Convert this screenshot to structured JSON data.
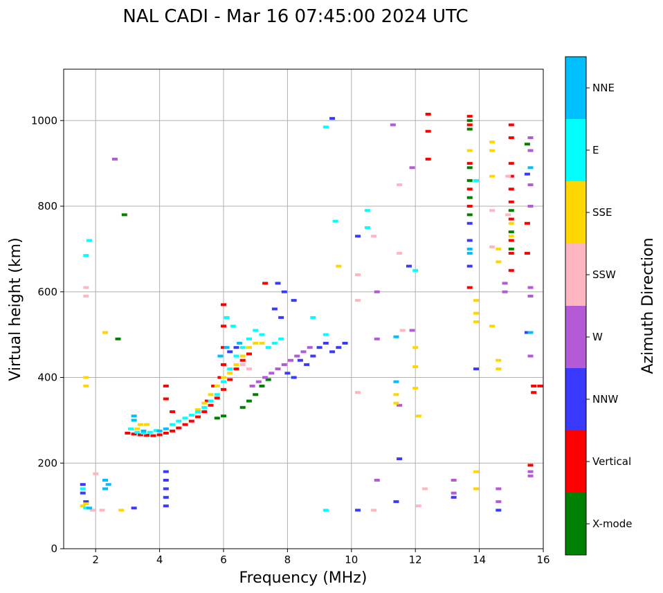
{
  "chart_data": {
    "type": "scatter",
    "title": "NAL CADI - Mar 16 07:45:00 2024 UTC",
    "xlabel": "Frequency (MHz)",
    "ylabel": "Virtual height (km)",
    "xlim": [
      1,
      16
    ],
    "ylim": [
      0,
      1120
    ],
    "xticks": [
      2,
      4,
      6,
      8,
      10,
      12,
      14,
      16
    ],
    "yticks": [
      0,
      200,
      400,
      600,
      800,
      1000
    ],
    "grid": true,
    "colorbar": {
      "label": "Azimuth Direction",
      "categories": [
        {
          "name": "X-mode",
          "color": "#008000"
        },
        {
          "name": "Vertical",
          "color": "#ff0000"
        },
        {
          "name": "NNW",
          "color": "#3a3aff"
        },
        {
          "name": "W",
          "color": "#b45ad6"
        },
        {
          "name": "SSW",
          "color": "#ffb6c1"
        },
        {
          "name": "SSE",
          "color": "#ffd700"
        },
        {
          "name": "E",
          "color": "#00ffff"
        },
        {
          "name": "NNE",
          "color": "#00bfff"
        }
      ]
    },
    "series": [
      {
        "name": "Vertical",
        "points": [
          [
            3.0,
            270
          ],
          [
            3.2,
            268
          ],
          [
            3.4,
            266
          ],
          [
            3.6,
            265
          ],
          [
            3.8,
            264
          ],
          [
            4.0,
            266
          ],
          [
            4.2,
            270
          ],
          [
            4.4,
            275
          ],
          [
            4.6,
            282
          ],
          [
            4.8,
            290
          ],
          [
            5.0,
            298
          ],
          [
            5.2,
            308
          ],
          [
            5.4,
            320
          ],
          [
            5.6,
            335
          ],
          [
            5.8,
            352
          ],
          [
            6.0,
            372
          ],
          [
            6.2,
            395
          ],
          [
            6.4,
            420
          ],
          [
            6.6,
            440
          ],
          [
            6.8,
            455
          ],
          [
            5.9,
            400
          ],
          [
            6.0,
            430
          ],
          [
            6.0,
            470
          ],
          [
            6.0,
            520
          ],
          [
            6.0,
            570
          ],
          [
            4.2,
            350
          ],
          [
            4.2,
            380
          ],
          [
            4.4,
            320
          ],
          [
            5.5,
            345
          ],
          [
            5.7,
            380
          ],
          [
            7.3,
            620
          ],
          [
            13.7,
            1010
          ],
          [
            13.7,
            990
          ],
          [
            13.7,
            900
          ],
          [
            13.7,
            840
          ],
          [
            13.7,
            800
          ],
          [
            13.7,
            610
          ],
          [
            15.0,
            990
          ],
          [
            15.0,
            960
          ],
          [
            15.0,
            900
          ],
          [
            15.0,
            870
          ],
          [
            15.0,
            840
          ],
          [
            15.0,
            810
          ],
          [
            15.0,
            770
          ],
          [
            15.0,
            720
          ],
          [
            15.0,
            690
          ],
          [
            15.0,
            650
          ],
          [
            15.7,
            380
          ],
          [
            15.7,
            365
          ],
          [
            15.9,
            380
          ],
          [
            12.4,
            1015
          ],
          [
            12.4,
            975
          ],
          [
            12.4,
            910
          ],
          [
            15.5,
            760
          ],
          [
            15.5,
            690
          ],
          [
            15.6,
            195
          ]
        ]
      },
      {
        "name": "X-mode",
        "points": [
          [
            13.7,
            1000
          ],
          [
            13.7,
            980
          ],
          [
            13.7,
            890
          ],
          [
            13.7,
            860
          ],
          [
            13.7,
            820
          ],
          [
            13.7,
            780
          ],
          [
            15.0,
            790
          ],
          [
            15.0,
            740
          ],
          [
            15.0,
            700
          ],
          [
            15.5,
            945
          ],
          [
            6.6,
            330
          ],
          [
            6.8,
            345
          ],
          [
            7.0,
            360
          ],
          [
            7.2,
            380
          ],
          [
            7.4,
            395
          ],
          [
            6.0,
            310
          ],
          [
            5.8,
            305
          ],
          [
            2.9,
            780
          ],
          [
            2.7,
            490
          ]
        ]
      },
      {
        "name": "NNW",
        "points": [
          [
            4.2,
            180
          ],
          [
            4.2,
            160
          ],
          [
            4.2,
            140
          ],
          [
            4.2,
            120
          ],
          [
            4.2,
            100
          ],
          [
            1.6,
            150
          ],
          [
            1.6,
            130
          ],
          [
            1.7,
            110
          ],
          [
            7.6,
            560
          ],
          [
            7.8,
            540
          ],
          [
            7.7,
            620
          ],
          [
            7.9,
            600
          ],
          [
            8.2,
            580
          ],
          [
            8.4,
            440
          ],
          [
            8.6,
            430
          ],
          [
            8.8,
            450
          ],
          [
            9.0,
            470
          ],
          [
            9.2,
            480
          ],
          [
            9.4,
            460
          ],
          [
            9.6,
            470
          ],
          [
            9.8,
            480
          ],
          [
            8.0,
            410
          ],
          [
            8.2,
            400
          ],
          [
            13.7,
            760
          ],
          [
            13.7,
            720
          ],
          [
            13.7,
            660
          ],
          [
            13.9,
            420
          ],
          [
            13.2,
            120
          ],
          [
            10.2,
            90
          ],
          [
            11.4,
            110
          ],
          [
            11.5,
            210
          ],
          [
            11.8,
            660
          ],
          [
            9.4,
            1005
          ],
          [
            10.2,
            730
          ],
          [
            15.5,
            875
          ],
          [
            15.5,
            505
          ],
          [
            14.6,
            90
          ],
          [
            6.4,
            470
          ],
          [
            6.2,
            460
          ],
          [
            3.2,
            95
          ]
        ]
      },
      {
        "name": "W",
        "points": [
          [
            7.5,
            410
          ],
          [
            7.7,
            420
          ],
          [
            7.9,
            430
          ],
          [
            8.1,
            440
          ],
          [
            8.3,
            450
          ],
          [
            8.5,
            460
          ],
          [
            8.7,
            470
          ],
          [
            7.3,
            400
          ],
          [
            7.1,
            390
          ],
          [
            6.9,
            380
          ],
          [
            13.2,
            160
          ],
          [
            13.2,
            130
          ],
          [
            14.6,
            140
          ],
          [
            14.6,
            110
          ],
          [
            15.6,
            960
          ],
          [
            15.6,
            930
          ],
          [
            15.6,
            850
          ],
          [
            15.6,
            800
          ],
          [
            15.6,
            610
          ],
          [
            15.6,
            590
          ],
          [
            15.6,
            450
          ],
          [
            15.6,
            170
          ],
          [
            15.6,
            180
          ],
          [
            11.3,
            990
          ],
          [
            11.9,
            890
          ],
          [
            14.8,
            620
          ],
          [
            14.8,
            600
          ],
          [
            11.9,
            510
          ],
          [
            10.8,
            600
          ],
          [
            10.8,
            490
          ],
          [
            10.8,
            160
          ],
          [
            11.5,
            335
          ],
          [
            2.6,
            910
          ]
        ]
      },
      {
        "name": "SSW",
        "points": [
          [
            1.7,
            610
          ],
          [
            1.7,
            590
          ],
          [
            12.3,
            140
          ],
          [
            12.1,
            100
          ],
          [
            14.4,
            790
          ],
          [
            14.4,
            705
          ],
          [
            10.7,
            730
          ],
          [
            10.2,
            640
          ],
          [
            10.2,
            580
          ],
          [
            10.2,
            365
          ],
          [
            11.5,
            690
          ],
          [
            11.5,
            850
          ],
          [
            11.6,
            510
          ],
          [
            6.6,
            430
          ],
          [
            6.8,
            420
          ],
          [
            14.9,
            870
          ],
          [
            14.9,
            780
          ],
          [
            2.0,
            175
          ],
          [
            1.9,
            90
          ],
          [
            2.2,
            90
          ],
          [
            10.7,
            90
          ]
        ]
      },
      {
        "name": "SSE",
        "points": [
          [
            14.4,
            950
          ],
          [
            14.4,
            930
          ],
          [
            14.4,
            870
          ],
          [
            14.6,
            700
          ],
          [
            14.6,
            670
          ],
          [
            14.6,
            440
          ],
          [
            14.6,
            420
          ],
          [
            14.4,
            520
          ],
          [
            13.9,
            580
          ],
          [
            13.9,
            550
          ],
          [
            13.9,
            530
          ],
          [
            13.9,
            180
          ],
          [
            13.9,
            140
          ],
          [
            15.0,
            760
          ],
          [
            15.0,
            730
          ],
          [
            13.7,
            930
          ],
          [
            12.0,
            470
          ],
          [
            12.0,
            425
          ],
          [
            12.0,
            375
          ],
          [
            12.1,
            310
          ],
          [
            11.4,
            360
          ],
          [
            11.4,
            340
          ],
          [
            9.6,
            660
          ],
          [
            3.4,
            290
          ],
          [
            3.3,
            280
          ],
          [
            3.6,
            290
          ],
          [
            5.2,
            325
          ],
          [
            5.4,
            340
          ],
          [
            5.6,
            360
          ],
          [
            5.8,
            380
          ],
          [
            6.0,
            400
          ],
          [
            6.2,
            410
          ],
          [
            6.4,
            430
          ],
          [
            6.6,
            450
          ],
          [
            6.8,
            470
          ],
          [
            7.0,
            480
          ],
          [
            7.2,
            480
          ],
          [
            1.6,
            100
          ],
          [
            1.7,
            105
          ],
          [
            2.3,
            505
          ],
          [
            1.7,
            400
          ],
          [
            1.7,
            380
          ],
          [
            2.8,
            90
          ]
        ]
      },
      {
        "name": "E",
        "points": [
          [
            3.1,
            280
          ],
          [
            3.3,
            272
          ],
          [
            3.5,
            270
          ],
          [
            3.7,
            272
          ],
          [
            3.9,
            276
          ],
          [
            4.4,
            290
          ],
          [
            4.6,
            298
          ],
          [
            4.8,
            305
          ],
          [
            5.0,
            312
          ],
          [
            5.2,
            320
          ],
          [
            5.4,
            330
          ],
          [
            5.6,
            345
          ],
          [
            5.8,
            360
          ],
          [
            6.0,
            390
          ],
          [
            6.2,
            420
          ],
          [
            6.4,
            450
          ],
          [
            6.6,
            470
          ],
          [
            6.8,
            490
          ],
          [
            7.0,
            510
          ],
          [
            7.2,
            500
          ],
          [
            7.4,
            470
          ],
          [
            7.6,
            480
          ],
          [
            7.8,
            490
          ],
          [
            6.1,
            540
          ],
          [
            6.3,
            520
          ],
          [
            8.8,
            540
          ],
          [
            9.2,
            500
          ],
          [
            9.2,
            985
          ],
          [
            9.5,
            765
          ],
          [
            10.5,
            790
          ],
          [
            10.5,
            750
          ],
          [
            12.0,
            650
          ],
          [
            13.9,
            860
          ],
          [
            9.2,
            90
          ],
          [
            1.8,
            720
          ],
          [
            1.7,
            685
          ],
          [
            1.6,
            140
          ],
          [
            1.7,
            95
          ]
        ]
      },
      {
        "name": "NNE",
        "points": [
          [
            3.2,
            310
          ],
          [
            3.2,
            300
          ],
          [
            3.5,
            275
          ],
          [
            2.3,
            160
          ],
          [
            2.3,
            140
          ],
          [
            2.4,
            150
          ],
          [
            13.7,
            700
          ],
          [
            13.7,
            690
          ],
          [
            15.6,
            505
          ],
          [
            15.6,
            890
          ],
          [
            11.4,
            495
          ],
          [
            11.4,
            390
          ],
          [
            4.0,
            275
          ],
          [
            4.2,
            280
          ],
          [
            5.9,
            450
          ],
          [
            6.1,
            470
          ],
          [
            6.5,
            480
          ],
          [
            1.8,
            95
          ]
        ]
      }
    ]
  }
}
